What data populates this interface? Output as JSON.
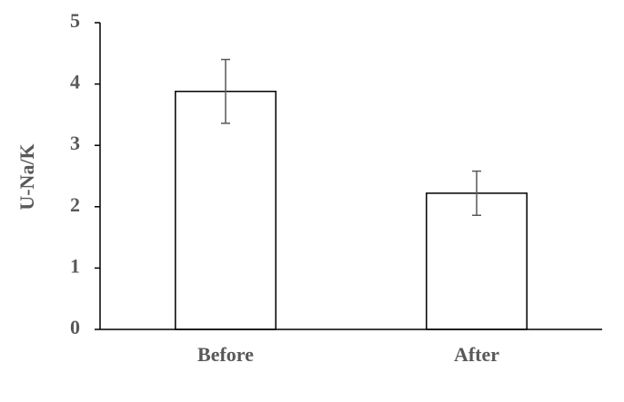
{
  "chart_data": {
    "type": "bar",
    "y_label": "U-Na/K",
    "categories": [
      "Before",
      "After"
    ],
    "values": [
      3.88,
      2.22
    ],
    "errors": [
      0.52,
      0.36
    ],
    "color": "#ffffff",
    "edge_color": "#000000",
    "error_color": "#595959",
    "ylim": [
      0,
      5
    ],
    "yticks": [
      0,
      1,
      2,
      3,
      4,
      5
    ],
    "grid": false
  }
}
